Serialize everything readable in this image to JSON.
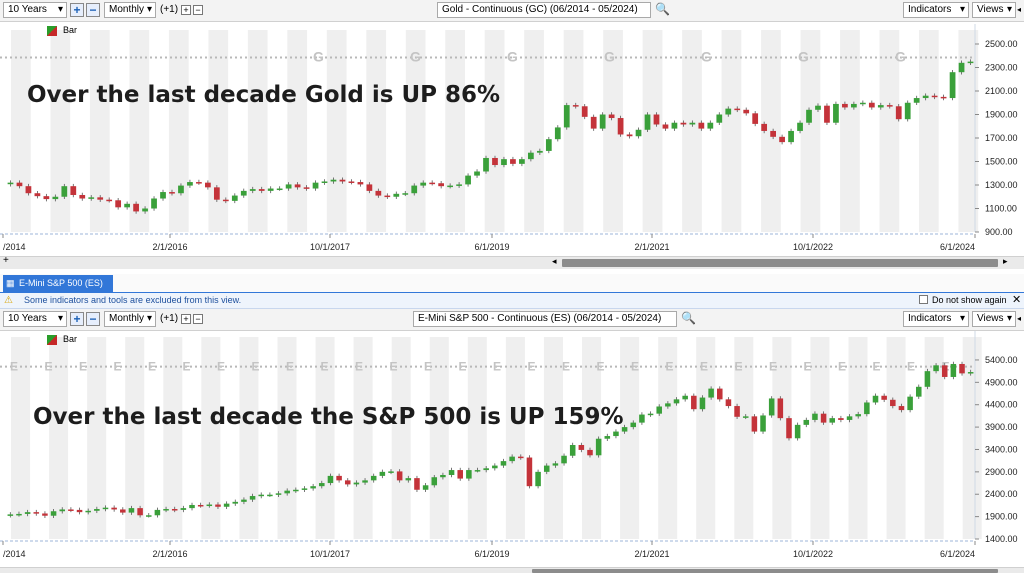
{
  "top": {
    "period": "10 Years",
    "interval": "Monthly",
    "offset": "(+1)",
    "symbol_title": "Gold - Continuous (GC) (06/2014 - 05/2024)",
    "indicators": "Indicators",
    "views": "Views",
    "legend": "Bar",
    "headline": "Over the last decade Gold is UP 86%",
    "marker_letter": "G"
  },
  "bottom": {
    "tab": "E-Mini S&P 500 (ES)",
    "warning": "Some indicators and tools are excluded from this view.",
    "dont_show": "Do not show again",
    "period": "10 Years",
    "interval": "Monthly",
    "offset": "(+1)",
    "symbol_title": "E-Mini S&P 500 - Continuous (ES) (06/2014 - 05/2024)",
    "indicators": "Indicators",
    "views": "Views",
    "legend": "Bar",
    "headline": "Over the last decade the S&P 500 is UP 159%",
    "marker_letter": "E"
  },
  "colors": {
    "up": "#3aa03a",
    "down": "#c4333a",
    "accent": "#3277d8"
  },
  "chart_data": [
    {
      "type": "candlestick",
      "title": "Gold - Continuous (GC) (06/2014 - 05/2024)",
      "x_ticks": [
        "/2014",
        "2/1/2016",
        "10/1/2017",
        "6/1/2019",
        "2/1/2021",
        "10/1/2022",
        "6/1/2024"
      ],
      "y_ticks": [
        900,
        1100,
        1300,
        1500,
        1700,
        1900,
        2100,
        2300,
        2500
      ],
      "y_tick_labels": [
        "900.00",
        "1100.00",
        "1300.00",
        "1500.00",
        "1700.00",
        "1900.00",
        "2100.00",
        "2300.00",
        "2500.00"
      ],
      "ylim": [
        900,
        2500
      ],
      "closes": [
        1320,
        1290,
        1230,
        1205,
        1180,
        1200,
        1290,
        1215,
        1185,
        1195,
        1175,
        1170,
        1110,
        1140,
        1075,
        1100,
        1185,
        1240,
        1230,
        1295,
        1325,
        1320,
        1280,
        1175,
        1165,
        1210,
        1250,
        1265,
        1250,
        1270,
        1270,
        1305,
        1280,
        1270,
        1320,
        1330,
        1345,
        1330,
        1325,
        1305,
        1250,
        1210,
        1200,
        1225,
        1230,
        1295,
        1320,
        1315,
        1290,
        1295,
        1305,
        1380,
        1415,
        1530,
        1470,
        1520,
        1480,
        1520,
        1575,
        1590,
        1690,
        1790,
        1980,
        1970,
        1880,
        1780,
        1900,
        1870,
        1730,
        1715,
        1770,
        1900,
        1815,
        1780,
        1830,
        1815,
        1830,
        1780,
        1830,
        1900,
        1950,
        1940,
        1910,
        1820,
        1760,
        1710,
        1665,
        1760,
        1830,
        1940,
        1975,
        1830,
        1990,
        1960,
        1990,
        2000,
        1960,
        1980,
        1970,
        1860,
        2000,
        2040,
        2060,
        2050,
        2040,
        2260,
        2340,
        2350
      ],
      "ref_line": 2385
    },
    {
      "type": "candlestick",
      "title": "E-Mini S&P 500 - Continuous (ES) (06/2014 - 05/2024)",
      "x_ticks": [
        "/2014",
        "2/1/2016",
        "10/1/2017",
        "6/1/2019",
        "2/1/2021",
        "10/1/2022",
        "6/1/2024"
      ],
      "y_ticks": [
        1400,
        1900,
        2400,
        2900,
        3400,
        3900,
        4400,
        4900,
        5400
      ],
      "y_tick_labels": [
        "1400.00",
        "1900.00",
        "2400.00",
        "2900.00",
        "3400.00",
        "3900.00",
        "4400.00",
        "4900.00",
        "5400.00"
      ],
      "ylim": [
        1400,
        5600
      ],
      "closes": [
        1950,
        1960,
        2000,
        1970,
        1920,
        2020,
        2060,
        2050,
        2000,
        2030,
        2070,
        2100,
        2060,
        1990,
        2090,
        1930,
        1930,
        2050,
        2070,
        2050,
        2090,
        2160,
        2150,
        2170,
        2120,
        2190,
        2230,
        2280,
        2360,
        2390,
        2390,
        2420,
        2480,
        2500,
        2530,
        2580,
        2650,
        2810,
        2710,
        2620,
        2660,
        2710,
        2810,
        2900,
        2910,
        2710,
        2760,
        2500,
        2600,
        2780,
        2830,
        2940,
        2750,
        2940,
        2940,
        2980,
        3040,
        3140,
        3240,
        3220,
        2580,
        2900,
        3040,
        3090,
        3260,
        3500,
        3390,
        3270,
        3640,
        3700,
        3800,
        3900,
        4000,
        4180,
        4200,
        4360,
        4430,
        4520,
        4600,
        4300,
        4560,
        4760,
        4520,
        4370,
        4130,
        4140,
        3800,
        4160,
        4540,
        4100,
        3650,
        3950,
        4060,
        4200,
        4000,
        4100,
        4060,
        4140,
        4190,
        4450,
        4600,
        4510,
        4370,
        4280,
        4580,
        4800,
        5150,
        5280,
        5020,
        5310,
        5100,
        5130
      ],
      "ref_line": 5250
    }
  ]
}
